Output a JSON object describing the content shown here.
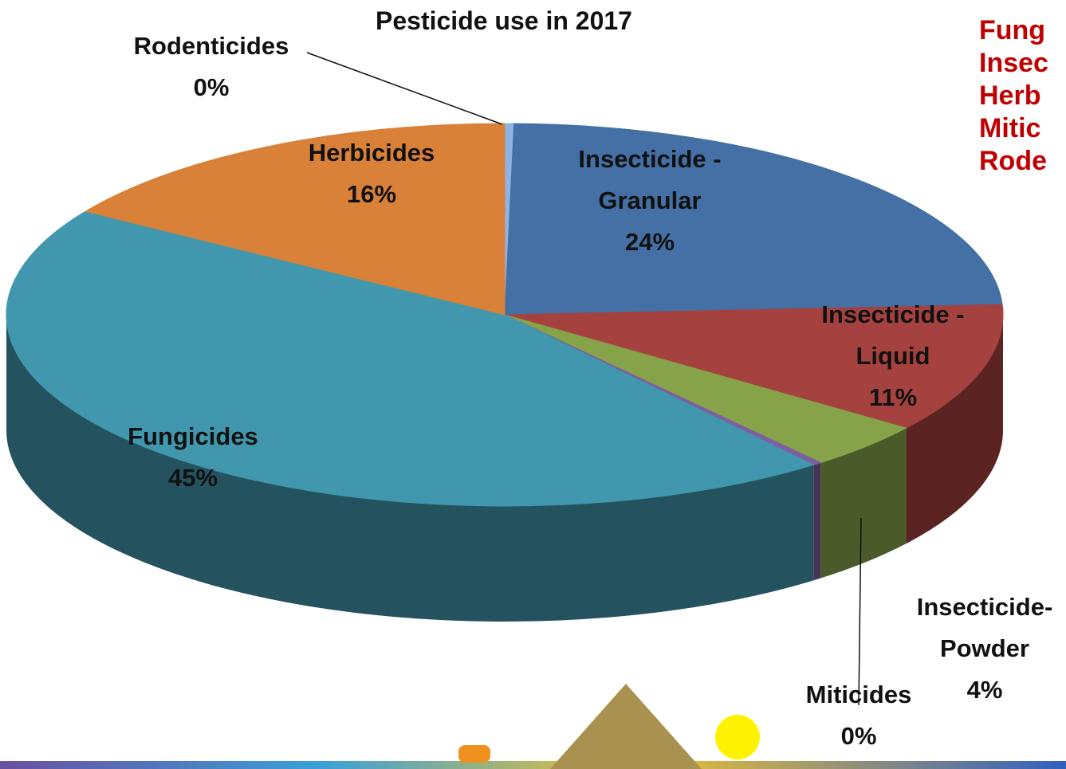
{
  "chart_data": {
    "type": "pie3d",
    "title": "Pesticide use in 2017",
    "categories": [
      "Rodenticides",
      "Insecticide - Granular",
      "Insecticide - Liquid",
      "Insecticide- Powder",
      "Miticides",
      "Fungicides",
      "Herbicides"
    ],
    "values": [
      0.3,
      24,
      11,
      4,
      0.3,
      45,
      16
    ],
    "value_labels": [
      "0%",
      "24%",
      "11%",
      "4%",
      "0%",
      "45%",
      "16%"
    ],
    "colors": [
      "#8fb4e3",
      "#4470a5",
      "#a5423f",
      "#86a34a",
      "#7d5ea0",
      "#4197ad",
      "#d98039"
    ],
    "overlay_text": [
      "Fung",
      "Insec",
      "Herb",
      "Mitic",
      "Rode"
    ]
  }
}
